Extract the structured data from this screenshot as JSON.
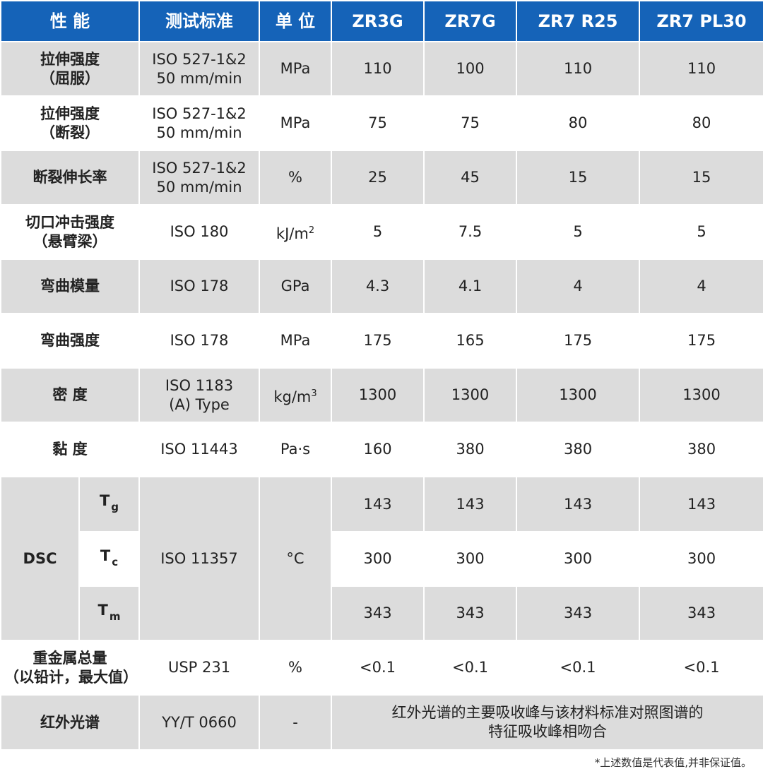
{
  "header": {
    "property": "性 能",
    "standard": "测试标准",
    "unit": "单 位",
    "grades": [
      "ZR3G",
      "ZR7G",
      "ZR7 R25",
      "ZR7 PL30"
    ]
  },
  "rows": [
    {
      "property": [
        "拉伸强度",
        "（屈服）"
      ],
      "standard": [
        "ISO 527-1&2",
        "50 mm/min"
      ],
      "unit": "MPa",
      "values": [
        "110",
        "100",
        "110",
        "110"
      ]
    },
    {
      "property": [
        "拉伸强度",
        "（断裂）"
      ],
      "standard": [
        "ISO 527-1&2",
        "50 mm/min"
      ],
      "unit": "MPa",
      "values": [
        "75",
        "75",
        "80",
        "80"
      ]
    },
    {
      "property": [
        "断裂伸长率"
      ],
      "standard": [
        "ISO 527-1&2",
        "50 mm/min"
      ],
      "unit": "%",
      "values": [
        "25",
        "45",
        "15",
        "15"
      ]
    },
    {
      "property": [
        "切口冲击强度",
        "（悬臂梁）"
      ],
      "standard": [
        "ISO 180"
      ],
      "unit_base": "kJ/m",
      "unit_sup": "2",
      "values": [
        "5",
        "7.5",
        "5",
        "5"
      ]
    },
    {
      "property": [
        "弯曲模量"
      ],
      "standard": [
        "ISO 178"
      ],
      "unit": "GPa",
      "values": [
        "4.3",
        "4.1",
        "4",
        "4"
      ]
    },
    {
      "property": [
        "弯曲强度"
      ],
      "standard": [
        "ISO 178"
      ],
      "unit": "MPa",
      "values": [
        "175",
        "165",
        "175",
        "175"
      ]
    },
    {
      "property": [
        "密 度"
      ],
      "standard": [
        "ISO 1183",
        "(A) Type"
      ],
      "unit_base": "kg/m",
      "unit_sup": "3",
      "values": [
        "1300",
        "1300",
        "1300",
        "1300"
      ]
    },
    {
      "property": [
        "黏 度"
      ],
      "standard": [
        "ISO 11443"
      ],
      "unit": "Pa·s",
      "values": [
        "160",
        "380",
        "380",
        "380"
      ]
    }
  ],
  "dsc": {
    "label": "DSC",
    "standard": "ISO 11357",
    "unit": "°C",
    "sub_rows": [
      {
        "symbol": "T",
        "subscript": "g",
        "values": [
          "143",
          "143",
          "143",
          "143"
        ]
      },
      {
        "symbol": "T",
        "subscript": "c",
        "values": [
          "300",
          "300",
          "300",
          "300"
        ]
      },
      {
        "symbol": "T",
        "subscript": "m",
        "values": [
          "343",
          "343",
          "343",
          "343"
        ]
      }
    ]
  },
  "heavy_metal": {
    "property": [
      "重金属总量",
      "（以铅计，最大值）"
    ],
    "standard": "USP 231",
    "unit": "%",
    "values": [
      "<0.1",
      "<0.1",
      "<0.1",
      "<0.1"
    ]
  },
  "infrared": {
    "property": "红外光谱",
    "standard": "YY/T 0660",
    "unit": "-",
    "note": [
      "红外光谱的主要吸收峰与该材料标准对照图谱的",
      "特征吸收峰相吻合"
    ]
  },
  "footnote": "*上述数值是代表值,并非保证值。",
  "colors": {
    "header_bg": "#1563b8",
    "header_text": "#ffffff",
    "row_gray": "#dcdcdc",
    "row_white": "#ffffff"
  }
}
